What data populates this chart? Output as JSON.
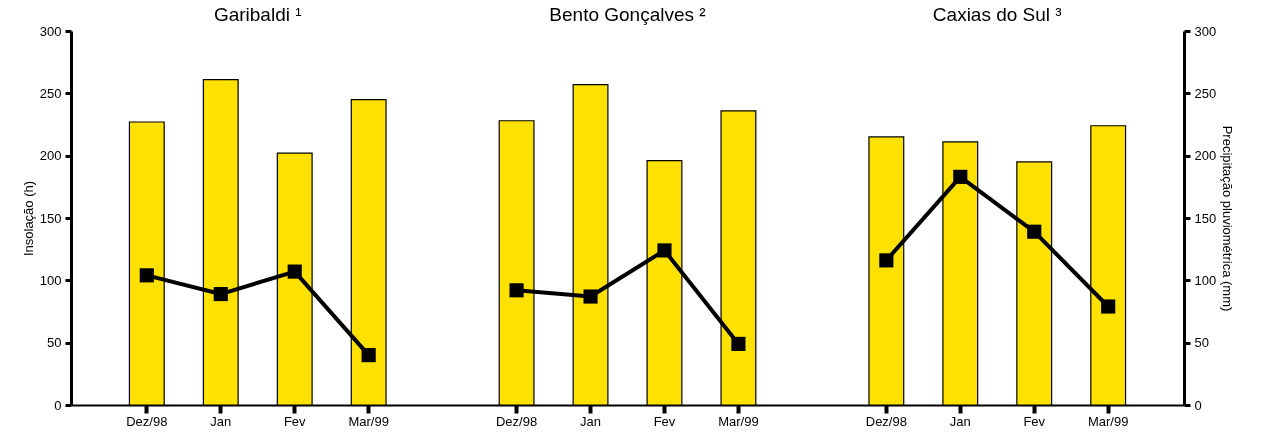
{
  "chart_data": {
    "type": "bar",
    "ylabel": "Insolação (h)",
    "y2label": "Precipitação pluviométrica (mm)",
    "categories": [
      "Dez/98",
      "Jan",
      "Fev",
      "Mar/99",
      null,
      "Dez/98",
      "Jan",
      "Fev",
      "Mar/99",
      null,
      "Dez/98",
      "Jan",
      "Fev",
      "Mar/99"
    ],
    "ylim": [
      0,
      300
    ],
    "yticks": [
      0,
      50,
      100,
      150,
      200,
      250,
      300
    ],
    "y2lim": [
      0,
      300
    ],
    "y2ticks": [
      0,
      50,
      100,
      150,
      200,
      250,
      300
    ],
    "annotations": [
      "Garibaldi ¹",
      "Bento Gonçalves ²",
      "Caxias do Sul ³"
    ],
    "series": [
      {
        "color": "#ffe100",
        "values": [
          227,
          261,
          202,
          245,
          null,
          228,
          257,
          196,
          236,
          null,
          215,
          211,
          195,
          224
        ]
      },
      {
        "type": "line",
        "axis": "y2",
        "color": "#000000",
        "marker": "square",
        "line_style": "solid",
        "values": [
          104,
          89,
          107,
          40,
          null,
          92,
          87,
          124,
          49,
          null,
          116,
          183,
          139,
          79
        ]
      }
    ]
  }
}
